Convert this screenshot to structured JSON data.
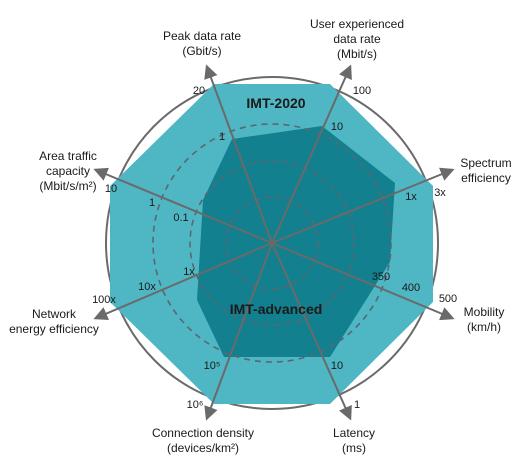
{
  "title_outer": "IMT-2020",
  "title_inner": "IMT-advanced",
  "colors": {
    "outer_fill": "#4fb6c4",
    "inner_fill": "#12808f",
    "axis": "#6a6a6a",
    "circle": "#6a6a6a"
  },
  "axes": [
    {
      "id": "peak",
      "lines": [
        "Peak data rate",
        "(Gbit/s)"
      ],
      "outer_value": "20",
      "inner_value": "1",
      "angle": -110
    },
    {
      "id": "user",
      "lines": [
        "User experienced",
        "data rate",
        "(Mbit/s)"
      ],
      "outer_value": "100",
      "inner_value": "10",
      "angle": -65
    },
    {
      "id": "spectrum",
      "lines": [
        "Spectrum",
        "efficiency"
      ],
      "outer_value": "3x",
      "inner_value": "1x",
      "angle": -20
    },
    {
      "id": "mobility",
      "lines": [
        "Mobility",
        "(km/h)"
      ],
      "outer_value": "500",
      "inner_value": "350",
      "angle": 25,
      "mid_value": "400"
    },
    {
      "id": "latency",
      "lines": [
        "Latency",
        "(ms)"
      ],
      "outer_value": "1",
      "inner_value": "10",
      "angle": 70
    },
    {
      "id": "connection",
      "lines": [
        "Connection density",
        "(devices/km²)"
      ],
      "outer_value": "10⁶",
      "inner_value": "10⁵",
      "angle": 115
    },
    {
      "id": "energy",
      "lines": [
        "Network",
        "energy efficiency"
      ],
      "outer_value": "100x",
      "inner_value": "1x",
      "angle": 160
    },
    {
      "id": "area",
      "lines": [
        "Area traffic",
        "capacity",
        "(Mbit/s/m²)"
      ],
      "outer_value": "10",
      "inner_value": "0.1",
      "angle": -155,
      "mid_value": "1"
    }
  ],
  "energy_mid_value": "10x"
}
